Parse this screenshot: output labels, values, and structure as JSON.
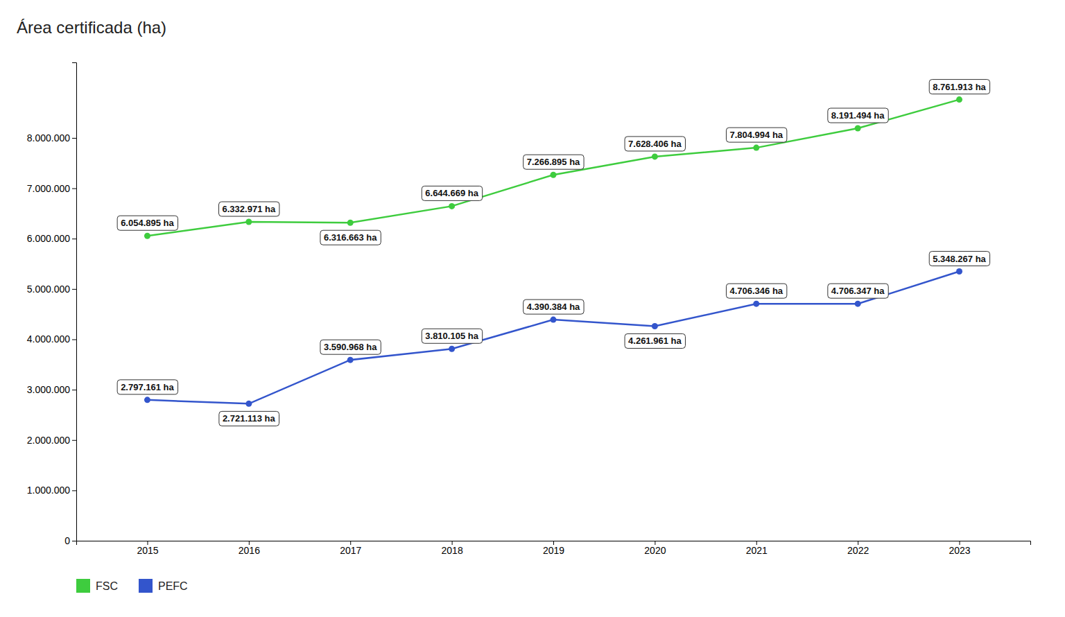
{
  "chart_data": {
    "type": "line",
    "title": "Área certificada (ha)",
    "x": [
      2015,
      2016,
      2017,
      2018,
      2019,
      2020,
      2021,
      2022,
      2023
    ],
    "xlim": [
      2014.3,
      2023.7
    ],
    "xticks": [
      2015,
      2016,
      2017,
      2018,
      2019,
      2020,
      2021,
      2022,
      2023
    ],
    "ylim": [
      0,
      9500000
    ],
    "yticks": [
      0,
      {
        "value": 1000000,
        "label": "1.000.000"
      },
      {
        "value": 2000000,
        "label": "2.000.000"
      },
      {
        "value": 3000000,
        "label": "3.000.000"
      },
      {
        "value": 4000000,
        "label": "4.000.000"
      },
      {
        "value": 5000000,
        "label": "5.000.000"
      },
      {
        "value": 6000000,
        "label": "6.000.000"
      },
      {
        "value": 7000000,
        "label": "7.000.000"
      },
      {
        "value": 8000000,
        "label": "8.000.000"
      }
    ],
    "grid": false,
    "legend": "bottom",
    "data_labels": true,
    "series": [
      {
        "name": "FSC",
        "color": "#3ecc3e",
        "marker": "circle",
        "values": [
          6054895,
          6332971,
          6316663,
          6644669,
          7266895,
          7628406,
          7804994,
          8191494,
          8761913
        ],
        "value_labels": [
          "6.054.895 ha",
          "6.332.971 ha",
          "6.316.663 ha",
          "6.644.669 ha",
          "7.266.895 ha",
          "7.628.406 ha",
          "7.804.994 ha",
          "8.191.494 ha",
          "8.761.913 ha"
        ]
      },
      {
        "name": "PEFC",
        "color": "#3355cc",
        "marker": "circle",
        "values": [
          2797161,
          2721113,
          3590968,
          3810105,
          4390384,
          4261961,
          4706346,
          4706347,
          5348267
        ],
        "value_labels": [
          "2.797.161 ha",
          "2.721.113 ha",
          "3.590.968 ha",
          "3.810.105 ha",
          "4.390.384 ha",
          "4.261.961 ha",
          "4.706.346 ha",
          "4.706.347 ha",
          "5.348.267 ha"
        ]
      }
    ]
  }
}
